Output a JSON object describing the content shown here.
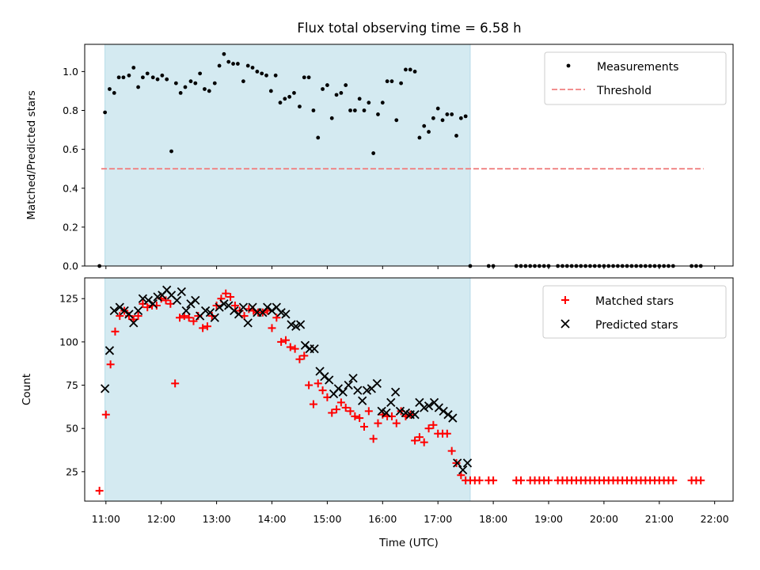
{
  "chart_data": {
    "title": "Flux total observing time = 6.58 h",
    "xlabel": "Time (UTC)",
    "x_ticks": [
      "11:00",
      "12:00",
      "13:00",
      "14:00",
      "15:00",
      "16:00",
      "17:00",
      "18:00",
      "19:00",
      "20:00",
      "21:00",
      "22:00"
    ],
    "xlim": [
      "10:37",
      "22:20"
    ],
    "observing_window": [
      "10:59",
      "17:35"
    ],
    "colors": {
      "window": "#d4eaf1",
      "matched": "#ff0000",
      "predicted": "#000000",
      "threshold": "#f08080",
      "measurement": "#000000"
    },
    "panels": [
      {
        "type": "scatter",
        "ylabel": "Matched/Predicted stars",
        "ylim": [
          0,
          1.14
        ],
        "y_ticks": [
          "0.0",
          "0.2",
          "0.4",
          "0.6",
          "0.8",
          "1.0"
        ],
        "legend_position": "top-right",
        "series": [
          {
            "name": "Measurements",
            "marker": "dot",
            "x": [
              "10:53",
              "10:59",
              "11:04",
              "11:09",
              "11:14",
              "11:19",
              "11:25",
              "11:30",
              "11:35",
              "11:40",
              "11:45",
              "11:51",
              "11:56",
              "12:01",
              "12:06",
              "12:11",
              "12:16",
              "12:21",
              "12:26",
              "12:32",
              "12:37",
              "12:42",
              "12:47",
              "12:52",
              "12:58",
              "13:03",
              "13:08",
              "13:13",
              "13:18",
              "13:23",
              "13:29",
              "13:34",
              "13:39",
              "13:44",
              "13:49",
              "13:54",
              "13:59",
              "14:04",
              "14:09",
              "14:14",
              "14:19",
              "14:24",
              "14:30",
              "14:35",
              "14:40",
              "14:45",
              "14:50",
              "14:55",
              "15:00",
              "15:05",
              "15:10",
              "15:15",
              "15:20",
              "15:25",
              "15:30",
              "15:35",
              "15:40",
              "15:45",
              "15:50",
              "15:55",
              "16:00",
              "16:05",
              "16:10",
              "16:15",
              "16:20",
              "16:25",
              "16:30",
              "16:35",
              "16:40",
              "16:45",
              "16:50",
              "16:55",
              "17:00",
              "17:05",
              "17:10",
              "17:15",
              "17:20",
              "17:25",
              "17:30",
              "17:35",
              "17:55",
              "18:00",
              "18:25",
              "18:30",
              "18:35",
              "18:40",
              "18:45",
              "18:50",
              "18:55",
              "19:00",
              "19:10",
              "19:15",
              "19:20",
              "19:25",
              "19:30",
              "19:35",
              "19:40",
              "19:45",
              "19:50",
              "19:55",
              "20:00",
              "20:05",
              "20:10",
              "20:15",
              "20:20",
              "20:25",
              "20:30",
              "20:35",
              "20:40",
              "20:45",
              "20:50",
              "20:55",
              "21:00",
              "21:05",
              "21:10",
              "21:15",
              "21:35",
              "21:40",
              "21:45"
            ],
            "y": [
              0.0,
              0.79,
              0.91,
              0.89,
              0.97,
              0.97,
              0.98,
              1.02,
              0.92,
              0.97,
              0.99,
              0.97,
              0.96,
              0.98,
              0.96,
              0.59,
              0.94,
              0.89,
              0.92,
              0.95,
              0.94,
              0.99,
              0.91,
              0.9,
              0.94,
              1.03,
              1.09,
              1.05,
              1.04,
              1.04,
              0.95,
              1.03,
              1.02,
              1.0,
              0.99,
              0.98,
              0.9,
              0.98,
              0.84,
              0.86,
              0.87,
              0.89,
              0.82,
              0.97,
              0.97,
              0.8,
              0.66,
              0.91,
              0.93,
              0.76,
              0.88,
              0.89,
              0.93,
              0.8,
              0.8,
              0.86,
              0.8,
              0.84,
              0.58,
              0.78,
              0.84,
              0.95,
              0.95,
              0.75,
              0.94,
              1.01,
              1.01,
              1.0,
              0.66,
              0.72,
              0.69,
              0.76,
              0.81,
              0.75,
              0.78,
              0.78,
              0.67,
              0.76,
              0.77,
              0.0,
              0.0,
              0.0,
              0.0,
              0.0,
              0.0,
              0.0,
              0.0,
              0.0,
              0.0,
              0.0,
              0.0,
              0.0,
              0.0,
              0.0,
              0.0,
              0.0,
              0.0,
              0.0,
              0.0,
              0.0,
              0.0,
              0.0,
              0.0,
              0.0,
              0.0,
              0.0,
              0.0,
              0.0,
              0.0,
              0.0,
              0.0,
              0.0,
              0.0,
              0.0,
              0.0,
              0.0,
              0.0,
              0.0,
              0.0
            ]
          },
          {
            "name": "Threshold",
            "marker": "dashed-line",
            "x": [
              "10:55",
              "21:48"
            ],
            "y": [
              0.5,
              0.5
            ]
          }
        ]
      },
      {
        "type": "scatter",
        "ylabel": "Count",
        "ylim": [
          8,
          137
        ],
        "y_ticks": [
          "25",
          "50",
          "75",
          "100",
          "125"
        ],
        "legend_position": "top-right",
        "series": [
          {
            "name": "Matched stars",
            "marker": "plus",
            "x": [
              "10:53",
              "11:00",
              "11:05",
              "11:10",
              "11:15",
              "11:20",
              "11:25",
              "11:30",
              "11:35",
              "11:40",
              "11:45",
              "11:50",
              "11:55",
              "12:00",
              "12:05",
              "12:10",
              "12:15",
              "12:20",
              "12:25",
              "12:30",
              "12:35",
              "12:40",
              "12:45",
              "12:50",
              "12:55",
              "13:00",
              "13:05",
              "13:10",
              "13:15",
              "13:20",
              "13:25",
              "13:30",
              "13:35",
              "13:40",
              "13:45",
              "13:50",
              "13:55",
              "14:00",
              "14:05",
              "14:10",
              "14:15",
              "14:20",
              "14:25",
              "14:30",
              "14:35",
              "14:40",
              "14:45",
              "14:50",
              "14:55",
              "15:00",
              "15:05",
              "15:10",
              "15:15",
              "15:20",
              "15:25",
              "15:30",
              "15:35",
              "15:40",
              "15:45",
              "15:50",
              "15:55",
              "16:00",
              "16:05",
              "16:10",
              "16:15",
              "16:20",
              "16:25",
              "16:30",
              "16:35",
              "16:40",
              "16:45",
              "16:50",
              "16:55",
              "17:00",
              "17:05",
              "17:10",
              "17:15",
              "17:20",
              "17:25",
              "17:30",
              "17:35",
              "17:40",
              "17:45",
              "17:55",
              "18:00",
              "18:25",
              "18:30",
              "18:40",
              "18:45",
              "18:50",
              "18:55",
              "19:00",
              "19:10",
              "19:15",
              "19:20",
              "19:25",
              "19:30",
              "19:35",
              "19:40",
              "19:45",
              "19:50",
              "19:55",
              "20:00",
              "20:05",
              "20:10",
              "20:15",
              "20:20",
              "20:25",
              "20:30",
              "20:35",
              "20:40",
              "20:45",
              "20:50",
              "20:55",
              "21:00",
              "21:05",
              "21:10",
              "21:15",
              "21:35",
              "21:40",
              "21:45"
            ],
            "y": [
              14,
              58,
              87,
              106,
              115,
              118,
              115,
              113,
              115,
              122,
              120,
              121,
              121,
              125,
              124,
              122,
              76,
              114,
              115,
              114,
              112,
              115,
              108,
              109,
              115,
              121,
              125,
              128,
              126,
              121,
              118,
              115,
              119,
              118,
              117,
              117,
              118,
              108,
              114,
              100,
              101,
              97,
              96,
              90,
              92,
              75,
              64,
              76,
              72,
              68,
              59,
              61,
              65,
              62,
              60,
              57,
              56,
              51,
              60,
              44,
              53,
              58,
              57,
              57,
              53,
              60,
              57,
              58,
              43,
              45,
              42,
              50,
              52,
              47,
              47,
              47,
              37,
              30,
              23,
              20,
              20,
              20,
              20,
              20,
              20,
              20,
              20,
              20,
              20,
              20,
              20,
              20,
              20,
              20,
              20,
              20,
              20,
              20,
              20,
              20,
              20,
              20,
              20,
              20,
              20,
              20,
              20,
              20,
              20,
              20,
              20,
              20,
              20,
              20,
              20,
              20,
              20,
              20,
              20,
              20,
              20
            ]
          },
          {
            "name": "Predicted stars",
            "marker": "x",
            "x": [
              "10:59",
              "11:04",
              "11:09",
              "11:15",
              "11:20",
              "11:25",
              "11:30",
              "11:35",
              "11:40",
              "11:46",
              "11:51",
              "11:56",
              "12:01",
              "12:06",
              "12:11",
              "12:17",
              "12:22",
              "12:27",
              "12:32",
              "12:37",
              "12:42",
              "12:48",
              "12:53",
              "12:58",
              "13:03",
              "13:08",
              "13:13",
              "13:19",
              "13:24",
              "13:29",
              "13:34",
              "13:39",
              "13:44",
              "13:50",
              "13:55",
              "14:00",
              "14:05",
              "14:10",
              "14:15",
              "14:21",
              "14:26",
              "14:31",
              "14:36",
              "14:41",
              "14:46",
              "14:52",
              "14:57",
              "15:02",
              "15:07",
              "15:12",
              "15:17",
              "15:23",
              "15:28",
              "15:33",
              "15:38",
              "15:43",
              "15:48",
              "15:54",
              "15:59",
              "16:04",
              "16:09",
              "16:14",
              "16:19",
              "16:25",
              "16:30",
              "16:35",
              "16:40",
              "16:45",
              "16:50",
              "16:56",
              "17:01",
              "17:06",
              "17:11",
              "17:16",
              "17:21",
              "17:27",
              "17:32"
            ],
            "y": [
              73,
              95,
              118,
              120,
              118,
              116,
              111,
              118,
              125,
              124,
              122,
              126,
              127,
              130,
              127,
              124,
              129,
              118,
              122,
              124,
              115,
              118,
              117,
              114,
              120,
              122,
              121,
              118,
              116,
              120,
              111,
              120,
              117,
              117,
              120,
              118,
              120,
              117,
              116,
              110,
              109,
              110,
              98,
              96,
              96,
              83,
              80,
              78,
              70,
              73,
              71,
              75,
              79,
              72,
              66,
              72,
              73,
              76,
              60,
              59,
              65,
              71,
              60,
              59,
              58,
              58,
              65,
              62,
              63,
              65,
              62,
              60,
              58,
              56,
              30,
              26,
              30
            ]
          }
        ]
      }
    ]
  }
}
